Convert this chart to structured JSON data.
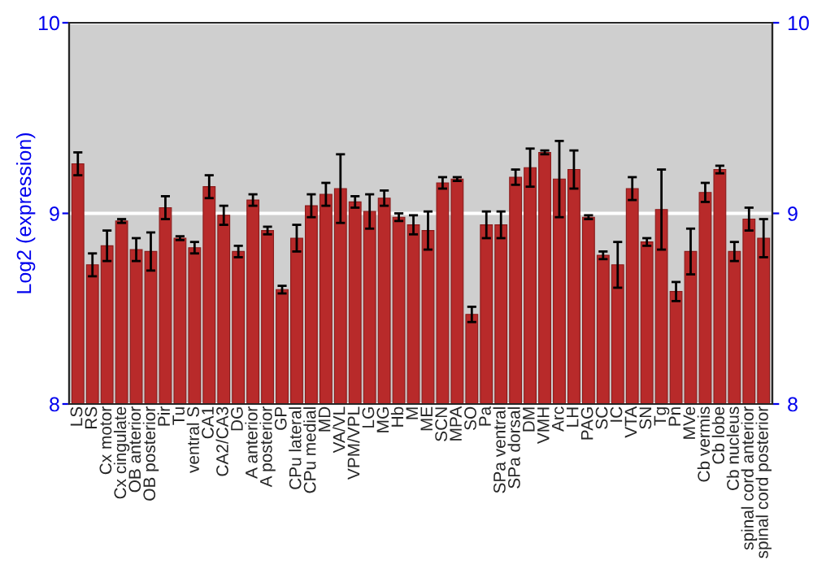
{
  "chart_data": {
    "type": "bar",
    "ylabel": "Log2 (expression)",
    "categories": [
      "LS",
      "RS",
      "Cx motor",
      "Cx cingulate",
      "OB anterior",
      "OB posterior",
      "Pir",
      "Tu",
      "ventral S",
      "CA1",
      "CA2/CA3",
      "DG",
      "A anterior",
      "A posterior",
      "GP",
      "CPu lateral",
      "CPu medial",
      "MD",
      "VA/VL",
      "VPM/VPL",
      "LG",
      "MG",
      "Hb",
      "M",
      "ME",
      "SCN",
      "MPA",
      "SO",
      "Pa",
      "SPa ventral",
      "SPa dorsal",
      "DM",
      "VMH",
      "Arc",
      "LH",
      "PAG",
      "SC",
      "IC",
      "VTA",
      "SN",
      "Tg",
      "Pn",
      "MVe",
      "Cb vermis",
      "Cb lobe",
      "Cb nucleus",
      "spinal cord anterior",
      "spinal cord posterior"
    ],
    "values": [
      9.26,
      8.73,
      8.83,
      8.96,
      8.81,
      8.8,
      9.03,
      8.87,
      8.82,
      9.14,
      8.99,
      8.8,
      9.07,
      8.91,
      8.6,
      8.87,
      9.04,
      9.1,
      9.13,
      9.06,
      9.01,
      9.08,
      8.98,
      8.94,
      8.91,
      9.16,
      9.18,
      8.47,
      8.94,
      8.94,
      9.19,
      9.24,
      9.32,
      9.18,
      9.23,
      8.98,
      8.78,
      8.73,
      9.13,
      8.85,
      9.02,
      8.59,
      8.8,
      9.11,
      9.23,
      8.8,
      8.97,
      8.87
    ],
    "errors": [
      0.06,
      0.06,
      0.08,
      0.01,
      0.06,
      0.1,
      0.06,
      0.01,
      0.03,
      0.06,
      0.05,
      0.03,
      0.03,
      0.02,
      0.02,
      0.07,
      0.06,
      0.06,
      0.18,
      0.03,
      0.09,
      0.04,
      0.02,
      0.05,
      0.1,
      0.03,
      0.01,
      0.04,
      0.07,
      0.07,
      0.04,
      0.1,
      0.01,
      0.2,
      0.1,
      0.01,
      0.02,
      0.12,
      0.06,
      0.02,
      0.21,
      0.05,
      0.12,
      0.05,
      0.02,
      0.05,
      0.06,
      0.1
    ],
    "color": "#b82a2a",
    "ylim": [
      8,
      10
    ],
    "yticks": [
      8,
      9,
      10
    ],
    "y2lim": [
      8,
      10
    ],
    "y2ticks": [
      8,
      9,
      10
    ],
    "grid": "y"
  }
}
